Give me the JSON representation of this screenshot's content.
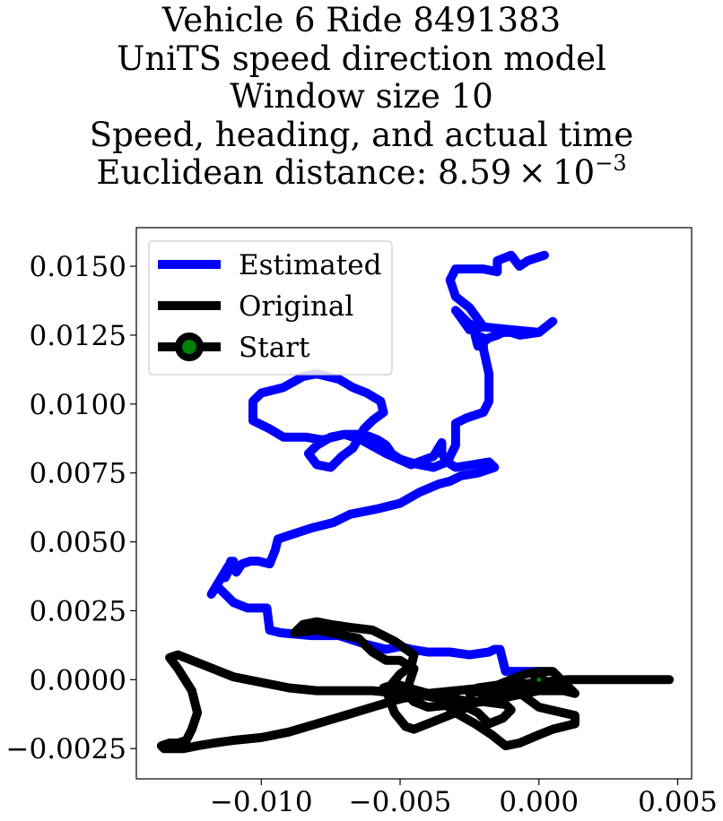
{
  "chart_data": {
    "type": "line",
    "title_lines": [
      "Vehicle 6 Ride 8491383",
      "UniTS speed direction model",
      "Window size 10",
      "Speed, heading, and actual time"
    ],
    "distance_label": "Euclidean distance: 8.59",
    "distance_times": "×",
    "distance_base": "10",
    "distance_exponent": "−3",
    "xlim": [
      -0.0145,
      0.0055
    ],
    "ylim": [
      -0.0036,
      0.0164
    ],
    "xticks": [
      -0.01,
      -0.005,
      0.0,
      0.005
    ],
    "xtick_labels": [
      "−0.010",
      "−0.005",
      "0.000",
      "0.005"
    ],
    "yticks": [
      -0.0025,
      0.0,
      0.0025,
      0.005,
      0.0075,
      0.01,
      0.0125,
      0.015
    ],
    "ytick_labels": [
      "−0.0025",
      "0.0000",
      "0.0025",
      "0.0050",
      "0.0075",
      "0.0100",
      "0.0125",
      "0.0150"
    ],
    "legend_position": "upper left",
    "legend": [
      "Estimated",
      "Original",
      "Start"
    ],
    "colors": {
      "estimated": "#0000ff",
      "original": "#000000",
      "start_marker": "#008000"
    },
    "start": {
      "x": 0.0,
      "y": 0.0
    },
    "series": [
      {
        "name": "Estimated",
        "x": [
          0.0,
          -0.0012,
          -0.0014,
          -0.0016,
          -0.0018,
          -0.0018,
          -0.0025,
          -0.0032,
          -0.004,
          -0.0046,
          -0.005,
          -0.0055,
          -0.0063,
          -0.0072,
          -0.0082,
          -0.0093,
          -0.0097,
          -0.0098,
          -0.0105,
          -0.011,
          -0.0112,
          -0.0116,
          -0.0118,
          -0.0115,
          -0.0112,
          -0.011,
          -0.0113,
          -0.0111,
          -0.0109,
          -0.0107,
          -0.0104,
          -0.0101,
          -0.0097,
          -0.0095,
          -0.0094,
          -0.0088,
          -0.0082,
          -0.0074,
          -0.0068,
          -0.0058,
          -0.005,
          -0.0043,
          -0.0036,
          -0.0032,
          -0.0028,
          -0.0022,
          -0.0016,
          -0.0018,
          -0.0024,
          -0.003,
          -0.0033,
          -0.0035,
          -0.0035,
          -0.0038,
          -0.0046,
          -0.0055,
          -0.0064,
          -0.007,
          -0.0075,
          -0.008,
          -0.0083,
          -0.008,
          -0.0075,
          -0.0071,
          -0.0067,
          -0.0063,
          -0.006,
          -0.0056,
          -0.0057,
          -0.0062,
          -0.0067,
          -0.0072,
          -0.0076,
          -0.008,
          -0.0085,
          -0.0092,
          -0.01,
          -0.0103,
          -0.0103,
          -0.0097,
          -0.0092,
          -0.0084,
          -0.0078,
          -0.007,
          -0.0063,
          -0.0058,
          -0.0055,
          -0.0053,
          -0.005,
          -0.0047,
          -0.0043,
          -0.0038,
          -0.0033,
          -0.003,
          -0.003,
          -0.0026,
          -0.002,
          -0.0018,
          -0.0018,
          -0.002,
          -0.002,
          -0.0023,
          -0.0022,
          -0.0018,
          -0.0015,
          -0.0013,
          -0.001,
          -0.0007,
          0.0,
          0.0005,
          0.0,
          -0.001,
          -0.002,
          -0.0025,
          -0.003,
          -0.0025,
          -0.002,
          -0.0025,
          -0.003,
          -0.0032,
          -0.003,
          -0.002,
          -0.0015,
          -0.0015,
          -0.001,
          -0.0007,
          -0.0004,
          0.0002
        ],
        "y": [
          0.0003,
          0.0003,
          0.0011,
          0.0011,
          0.001,
          0.001,
          0.0009,
          0.001,
          0.001,
          0.0011,
          0.0012,
          0.0011,
          0.0013,
          0.0016,
          0.0016,
          0.0017,
          0.0018,
          0.0026,
          0.0026,
          0.0028,
          0.003,
          0.0034,
          0.0031,
          0.0036,
          0.0041,
          0.0043,
          0.0037,
          0.0043,
          0.0039,
          0.0042,
          0.0043,
          0.0043,
          0.0042,
          0.0047,
          0.0051,
          0.0053,
          0.0055,
          0.0057,
          0.006,
          0.0062,
          0.0064,
          0.0068,
          0.0071,
          0.0072,
          0.0074,
          0.0075,
          0.0077,
          0.0079,
          0.0078,
          0.0077,
          0.0079,
          0.0082,
          0.0086,
          0.0081,
          0.0078,
          0.0082,
          0.0087,
          0.0089,
          0.0088,
          0.0085,
          0.0082,
          0.0078,
          0.0077,
          0.0081,
          0.0084,
          0.0091,
          0.0094,
          0.0097,
          0.0101,
          0.0104,
          0.0106,
          0.0109,
          0.011,
          0.0111,
          0.011,
          0.0106,
          0.0104,
          0.0101,
          0.0094,
          0.0091,
          0.0088,
          0.0088,
          0.0087,
          0.0089,
          0.0089,
          0.0087,
          0.0085,
          0.0082,
          0.008,
          0.0079,
          0.0078,
          0.0077,
          0.0079,
          0.0085,
          0.0093,
          0.0095,
          0.0097,
          0.0101,
          0.0111,
          0.012,
          0.0124,
          0.0125,
          0.0121,
          0.0124,
          0.0125,
          0.0126,
          0.0126,
          0.0125,
          0.0126,
          0.013,
          0.0126,
          0.0127,
          0.0128,
          0.0127,
          0.0134,
          0.0129,
          0.0128,
          0.0135,
          0.0139,
          0.0145,
          0.0149,
          0.0149,
          0.0148,
          0.0152,
          0.0154,
          0.015,
          0.0152,
          0.0154
        ]
      },
      {
        "name": "Original",
        "x": [
          0.0,
          0.0005,
          0.001,
          0.001,
          0.0,
          -0.001,
          -0.002,
          -0.003,
          -0.004,
          -0.0045,
          -0.0048,
          -0.0045,
          -0.005,
          -0.0055,
          -0.006,
          -0.0065,
          -0.007,
          -0.0075,
          -0.008,
          -0.0088,
          -0.0085,
          -0.008,
          -0.0075,
          -0.0068,
          -0.006,
          -0.0052,
          -0.0045,
          -0.0046,
          -0.005,
          -0.0055,
          -0.0052,
          -0.0048,
          -0.0045,
          -0.004,
          -0.003,
          -0.002,
          -0.001,
          -0.0005,
          0.0005,
          0.0013,
          0.001,
          0.0005,
          0.0,
          -0.0005,
          -0.001,
          -0.0015,
          -0.002,
          -0.0025,
          -0.0022,
          -0.0015,
          -0.0008,
          0.0,
          0.0013,
          0.0013,
          0.0005,
          0.0,
          -0.0007,
          -0.0012,
          -0.0017,
          -0.0023,
          -0.003,
          -0.0035,
          -0.004,
          -0.0047,
          -0.005,
          -0.0053,
          -0.0056,
          -0.005,
          -0.0045,
          -0.004,
          -0.0035,
          -0.003,
          -0.0025,
          -0.002,
          -0.0012,
          -0.001,
          -0.0013,
          -0.0018,
          -0.0022,
          -0.003,
          -0.004,
          -0.005,
          -0.006,
          -0.007,
          -0.008,
          -0.009,
          -0.01,
          -0.011,
          -0.012,
          -0.013,
          -0.0133,
          -0.013,
          -0.0125,
          -0.0123,
          -0.0125,
          -0.0127,
          -0.013,
          -0.0133,
          -0.0136,
          -0.0135,
          -0.0133,
          -0.0128,
          -0.0123,
          -0.0117,
          -0.011,
          -0.01,
          -0.009,
          -0.008,
          -0.007,
          -0.006,
          -0.005,
          -0.004,
          -0.003,
          -0.002,
          -0.001,
          0.0,
          0.001,
          0.002,
          0.003,
          0.004,
          0.0047
        ],
        "y": [
          0.0,
          -0.0002,
          -0.0003,
          -0.0004,
          -0.0004,
          -0.0006,
          -0.0008,
          -0.0009,
          -0.001,
          -0.0008,
          -0.0005,
          0.0004,
          0.0007,
          0.0007,
          0.001,
          0.0015,
          0.0016,
          0.0017,
          0.0018,
          0.0017,
          0.002,
          0.0021,
          0.002,
          0.0019,
          0.0018,
          0.0014,
          0.0009,
          0.0005,
          0.0002,
          -0.0004,
          -0.0012,
          -0.0017,
          -0.0018,
          -0.0016,
          -0.0012,
          -0.0007,
          -0.0004,
          -0.0003,
          -0.0003,
          -0.0005,
          -0.0002,
          0.0003,
          0.0003,
          0.0002,
          0.0,
          -0.0002,
          -0.0004,
          -0.0005,
          -0.0003,
          -0.0002,
          -0.0004,
          -0.001,
          -0.0013,
          -0.0016,
          -0.0018,
          -0.002,
          -0.0023,
          -0.0024,
          -0.002,
          -0.0016,
          -0.0012,
          -0.0008,
          -0.0005,
          -0.0003,
          -0.0002,
          -0.0002,
          -0.0003,
          -0.0004,
          -0.0005,
          -0.0006,
          -0.0006,
          -0.0007,
          -0.0008,
          -0.0008,
          -0.0009,
          -0.0011,
          -0.0014,
          -0.0016,
          -0.0012,
          -0.0008,
          -0.0006,
          -0.0005,
          -0.0004,
          -0.0004,
          -0.0004,
          -0.0003,
          -0.0001,
          0.0001,
          0.0005,
          0.0009,
          0.0008,
          0.0004,
          -0.0004,
          -0.0012,
          -0.0018,
          -0.0022,
          -0.0023,
          -0.0023,
          -0.0024,
          -0.0025,
          -0.0025,
          -0.0025,
          -0.0024,
          -0.0023,
          -0.0022,
          -0.0021,
          -0.0019,
          -0.0016,
          -0.0013,
          -0.001,
          -0.0007,
          -0.0005,
          -0.0004,
          -0.0003,
          -0.0002,
          -0.0001,
          0.0,
          0.0,
          0.0,
          0.0,
          0.0
        ]
      }
    ]
  }
}
